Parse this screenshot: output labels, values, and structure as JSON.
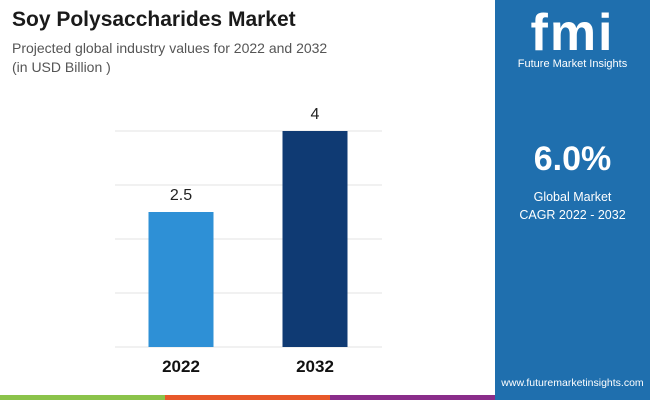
{
  "header": {
    "title": "Soy Polysaccharides Market",
    "subtitle": "Projected global industry values for 2022 and 2032",
    "unit": "(in USD Billion )"
  },
  "panel": {
    "logo_text": "fmi",
    "brand": "Future Market Insights",
    "cagr_value": "6.0%",
    "cagr_label_1": "Global Market",
    "cagr_label_2": "CAGR 2022 - 2032",
    "url": "www.futuremarketinsights.com"
  },
  "colors": {
    "bar_2022": "#2e90d6",
    "bar_2032": "#0f3a73",
    "panel": "#1f6fae",
    "strip": [
      "#8bc34a",
      "#e8582a",
      "#8a2d8a"
    ]
  },
  "chart_data": {
    "type": "bar",
    "categories": [
      "2022",
      "2032"
    ],
    "values": [
      2.5,
      4
    ],
    "data_labels": [
      "2.5",
      "4"
    ],
    "title": "Soy Polysaccharides Market",
    "ylim": [
      0,
      4
    ],
    "grid": true,
    "ylabel": "",
    "xlabel": ""
  }
}
